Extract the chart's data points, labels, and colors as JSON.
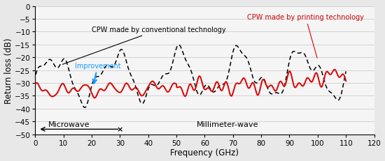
{
  "title": "",
  "xlabel": "Frequency (GHz)",
  "ylabel": "Return loss (dB)",
  "xlim": [
    0,
    120
  ],
  "ylim": [
    -50,
    0
  ],
  "yticks": [
    0,
    -5,
    -10,
    -15,
    -20,
    -25,
    -30,
    -35,
    -40,
    -45,
    -50
  ],
  "xticks": [
    0,
    10,
    20,
    30,
    40,
    50,
    60,
    70,
    80,
    90,
    100,
    110,
    120
  ],
  "fig_color": "#e8e8e8",
  "plot_bg_color": "#f5f5f5",
  "red_line_color": "#dd0000",
  "dashed_line_color": "#000000",
  "annotation_color_conventional": "#000000",
  "annotation_color_printing": "#cc0000",
  "annotation_color_improvement": "#1199ff",
  "microwave_label": "Microwave",
  "millimeter_label": "Millimeter-wave",
  "label_conventional": "CPW made by conventional technology",
  "label_printing": "CPW made by printing technology",
  "label_improvement": "Improvement"
}
